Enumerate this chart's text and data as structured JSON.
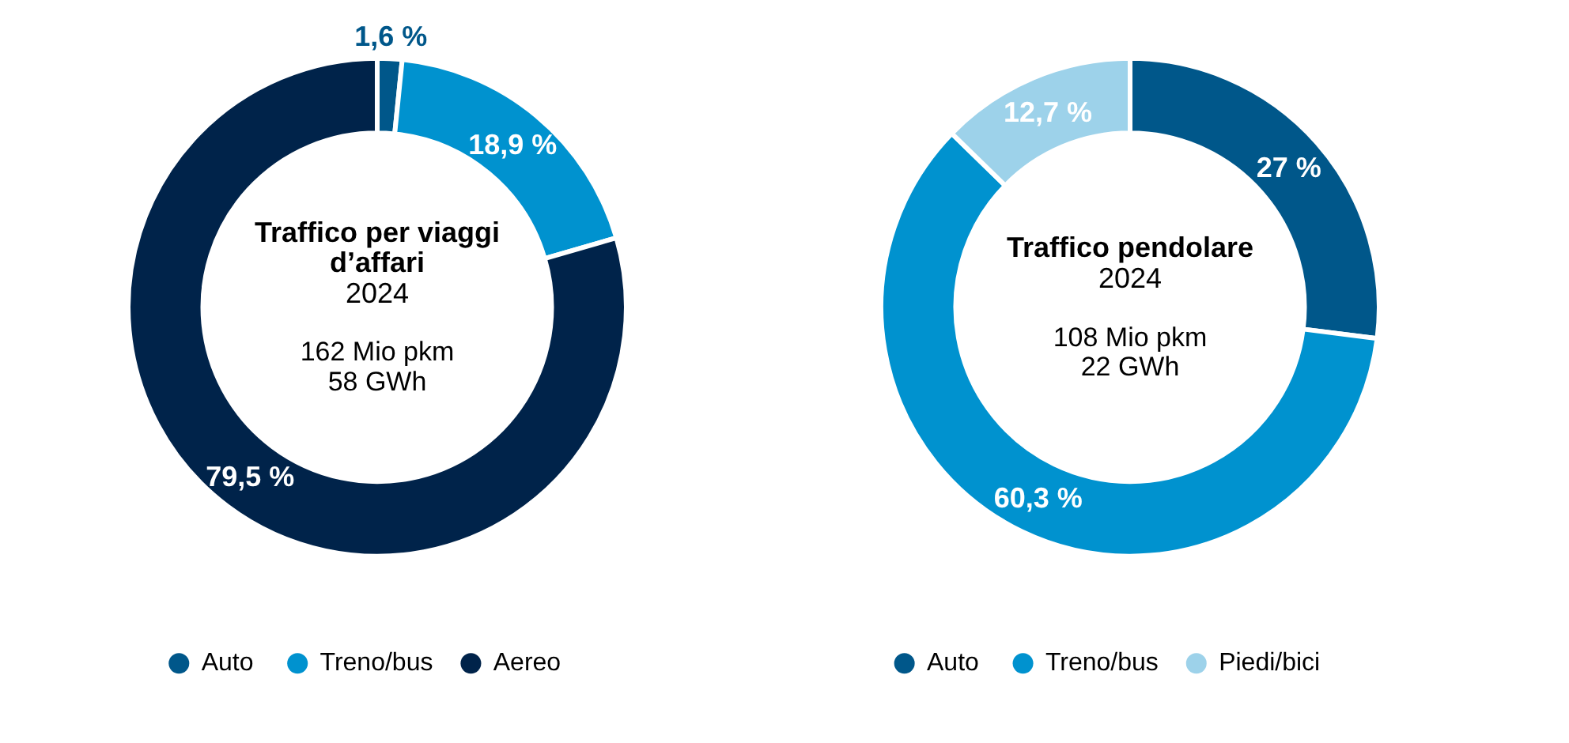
{
  "chart_data": [
    {
      "type": "donut",
      "title": "Traffico per viaggi d’affari",
      "subtitle": "2024",
      "annotations": [
        "162 Mio pkm",
        "58 GWh"
      ],
      "categories": [
        "Auto",
        "Treno/bus",
        "Aereo"
      ],
      "values": [
        1.6,
        18.9,
        79.5
      ],
      "value_labels": [
        "1,6 %",
        "18,9 %",
        "79,5 %"
      ],
      "colors": [
        "#00578a",
        "#0092cf",
        "#00234a"
      ],
      "legend": "bottom"
    },
    {
      "type": "donut",
      "title": "Traffico pendolare",
      "subtitle": "2024",
      "annotations": [
        "108 Mio pkm",
        "22 GWh"
      ],
      "categories": [
        "Auto",
        "Treno/bus",
        "Piedi/bici"
      ],
      "values": [
        27,
        60.3,
        12.7
      ],
      "value_labels": [
        "27 %",
        "60,3 %",
        "12,7 %"
      ],
      "colors": [
        "#00578a",
        "#0092cf",
        "#9dd2ea"
      ],
      "legend": "bottom"
    }
  ]
}
